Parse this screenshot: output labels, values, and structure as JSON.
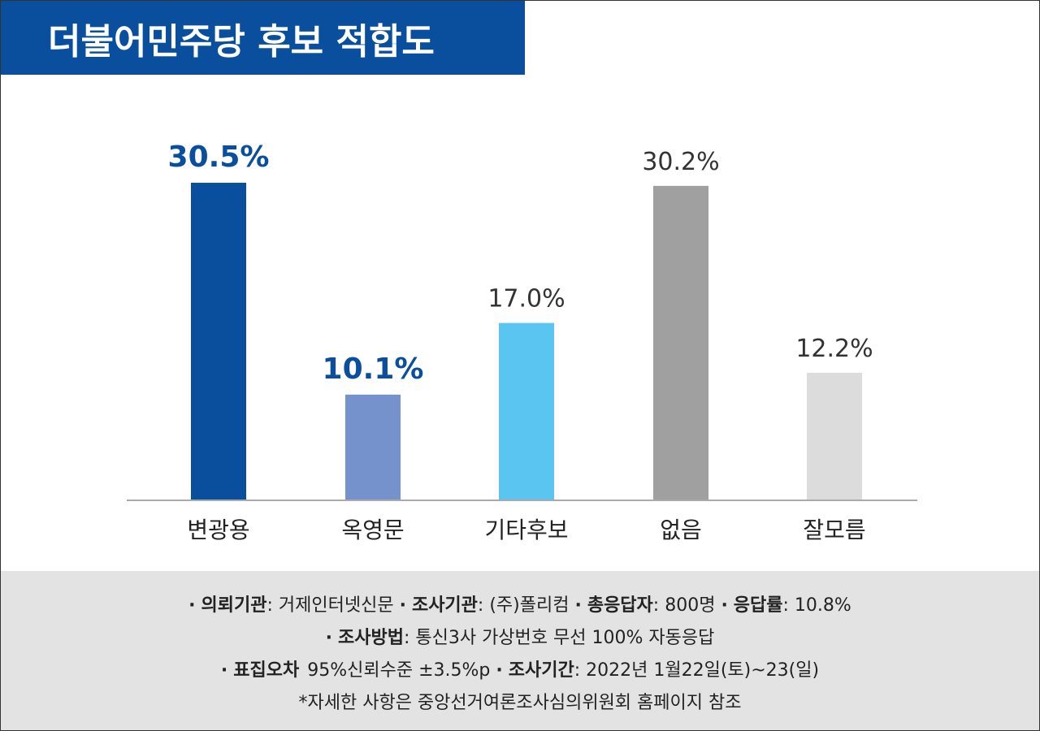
{
  "title": "더불어민주당 후보 적합도",
  "colors": {
    "title_bg": "#0a4f9e",
    "highlight_label": "#0a4f9e",
    "normal_label": "#333333",
    "axis": "#aaaaaa",
    "footer_bg": "#e3e3e3"
  },
  "chart_data": {
    "type": "bar",
    "categories": [
      "변광용",
      "옥영문",
      "기타후보",
      "없음",
      "잘모름"
    ],
    "values": [
      30.5,
      10.1,
      17.0,
      30.2,
      12.2
    ],
    "value_labels": [
      "30.5%",
      "10.1%",
      "17.0%",
      "30.2%",
      "12.2%"
    ],
    "bar_colors": [
      "#0a4f9e",
      "#7592cc",
      "#5bc5f2",
      "#a0a0a0",
      "#dcdcdc"
    ],
    "label_highlight": [
      true,
      true,
      false,
      false,
      false
    ],
    "ylim": [
      0,
      30.5
    ],
    "grid": false,
    "legend": "none"
  },
  "footer": {
    "line1": {
      "k1": "의뢰기관",
      "v1": ": 거제인터넷신문",
      "k2": "조사기관",
      "v2": ": (주)폴리컴",
      "k3": "총응답자",
      "v3": ": 800명",
      "k4": "응답률",
      "v4": ": 10.8%"
    },
    "line2": {
      "k1": "조사방법",
      "v1": ": 통신3사 가상번호 무선 100% 자동응답"
    },
    "line3": {
      "k1": "표집오차",
      "v1": "95%신뢰수준 ±3.5%p",
      "k2": "조사기간",
      "v2": ": 2022년 1월22일(토)~23(일)"
    },
    "line4": "*자세한 사항은 중앙선거여론조사심의위원회 홈페이지 참조",
    "bullet": "·"
  }
}
